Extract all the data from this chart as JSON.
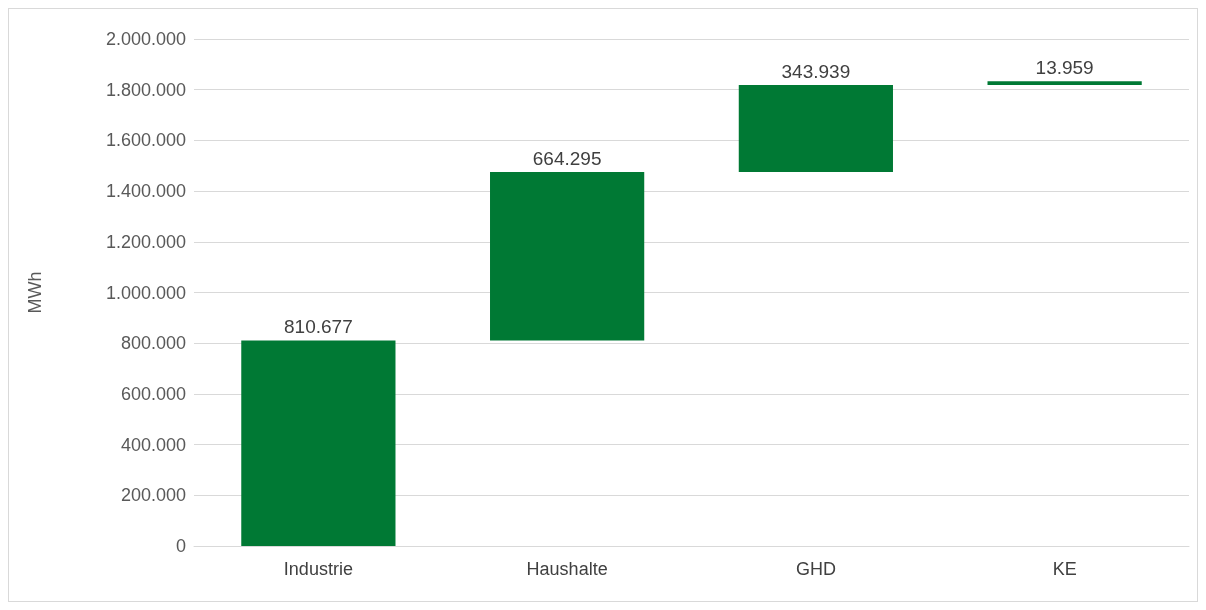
{
  "chart_data": {
    "type": "bar",
    "ylabel": "MWh",
    "categories": [
      "Industrie",
      "Haushalte",
      "GHD",
      "KE"
    ],
    "values": [
      810677,
      664295,
      343939,
      13959
    ],
    "base": [
      0,
      810677,
      1474972,
      1818911
    ],
    "value_labels": [
      "810.677",
      "664.295",
      "343.939",
      "13.959"
    ],
    "color": "#007934",
    "ylim": [
      0,
      2000000
    ],
    "yticks": [
      {
        "value": 0,
        "label": "0"
      },
      {
        "value": 200000,
        "label": "200.000"
      },
      {
        "value": 400000,
        "label": "400.000"
      },
      {
        "value": 600000,
        "label": "600.000"
      },
      {
        "value": 800000,
        "label": "800.000"
      },
      {
        "value": 1000000,
        "label": "1.000.000"
      },
      {
        "value": 1200000,
        "label": "1.200.000"
      },
      {
        "value": 1400000,
        "label": "1.400.000"
      },
      {
        "value": 1600000,
        "label": "1.600.000"
      },
      {
        "value": 1800000,
        "label": "1.800.000"
      },
      {
        "value": 2000000,
        "label": "2.000.000"
      }
    ],
    "grid": "y"
  }
}
